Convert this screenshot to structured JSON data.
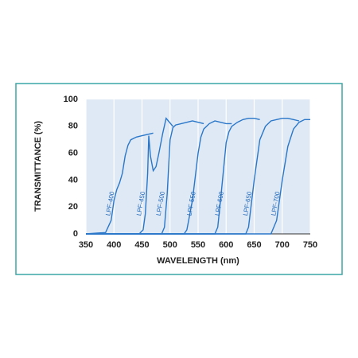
{
  "chart_data": {
    "type": "line",
    "xlabel": "WAVELENGTH (nm)",
    "ylabel": "TRANSMITTANCE (%)",
    "xlim": [
      350,
      750
    ],
    "ylim": [
      0,
      100
    ],
    "xticks": [
      350,
      400,
      450,
      500,
      550,
      600,
      650,
      700,
      750
    ],
    "yticks": [
      0,
      20,
      40,
      60,
      80,
      100
    ],
    "grid": true,
    "color": "#2a77c9",
    "series": [
      {
        "name": "LPF-400",
        "x": [
          350,
          385,
          395,
          400,
          405,
          410,
          415,
          420,
          425,
          430,
          440,
          450,
          460,
          470
        ],
        "values": [
          0,
          1,
          10,
          25,
          33,
          38,
          45,
          58,
          66,
          70,
          72,
          73,
          74,
          75
        ]
      },
      {
        "name": "LPF-450",
        "x": [
          350,
          445,
          452,
          456,
          460,
          462,
          465,
          470,
          475,
          480,
          487,
          493,
          497,
          505
        ],
        "values": [
          0,
          0,
          3,
          15,
          45,
          73,
          58,
          47,
          50,
          60,
          75,
          86,
          84,
          80
        ]
      },
      {
        "name": "LPF-500",
        "x": [
          350,
          485,
          490,
          495,
          500,
          505,
          510,
          520,
          530,
          540,
          550,
          560
        ],
        "values": [
          0,
          0,
          5,
          30,
          70,
          79,
          81,
          82,
          83,
          84,
          83,
          82
        ]
      },
      {
        "name": "LPF-550",
        "x": [
          350,
          525,
          530,
          540,
          550,
          555,
          560,
          570,
          580,
          590,
          600,
          610
        ],
        "values": [
          0,
          0,
          3,
          25,
          60,
          72,
          78,
          82,
          84,
          83,
          82,
          82
        ]
      },
      {
        "name": "LPF-600",
        "x": [
          350,
          580,
          585,
          590,
          600,
          605,
          610,
          620,
          630,
          640,
          650,
          660
        ],
        "values": [
          0,
          0,
          5,
          25,
          68,
          76,
          80,
          83,
          85,
          86,
          86,
          85
        ]
      },
      {
        "name": "LPF-650",
        "x": [
          350,
          635,
          640,
          650,
          660,
          670,
          680,
          690,
          700,
          710,
          720,
          730
        ],
        "values": [
          0,
          0,
          5,
          40,
          70,
          80,
          84,
          85,
          86,
          86,
          85,
          84
        ]
      },
      {
        "name": "LPF-700",
        "x": [
          350,
          680,
          690,
          700,
          710,
          720,
          730,
          740,
          750
        ],
        "values": [
          0,
          0,
          10,
          40,
          65,
          78,
          83,
          85,
          85
        ]
      }
    ]
  }
}
